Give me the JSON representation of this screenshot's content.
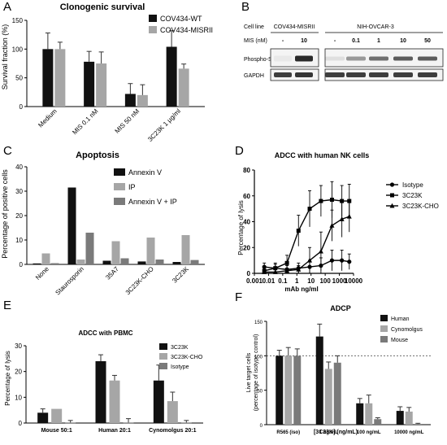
{
  "colors": {
    "black": "#111111",
    "light_gray": "#a6a6a6",
    "dark_gray": "#7a7a7a",
    "lighter_gray": "#c4c4c4",
    "blot_band": "#2a2a2a"
  },
  "chart_data": [
    {
      "panel": "A",
      "type": "bar",
      "title": "Clonogenic survival",
      "xlabel": "",
      "ylabel": "Survival fraction (%)",
      "ylim": [
        0,
        150
      ],
      "yticks": [
        0,
        50,
        100,
        150
      ],
      "categories": [
        "Medium",
        "MIS 0.1 nM",
        "MIS 50 nM",
        "3C23K 1 µg/ml"
      ],
      "series": [
        {
          "name": "COV434-WT",
          "color": "#111111",
          "values": [
            100,
            78,
            22,
            104
          ],
          "errors": [
            28,
            18,
            18,
            28
          ]
        },
        {
          "name": "COV434-MISRII",
          "color": "#a6a6a6",
          "values": [
            100,
            75,
            20,
            66
          ],
          "errors": [
            12,
            20,
            18,
            8
          ]
        }
      ],
      "legend_position": "top-right",
      "grid": false
    },
    {
      "panel": "B",
      "type": "blot",
      "header_label": "Cell line",
      "cell_lines": [
        "COV434-MISRII",
        "NIH-OVCAR-3"
      ],
      "mis_label": "MIS (nM)",
      "doses_left": [
        "-",
        "10"
      ],
      "doses_right": [
        "-",
        "0.1",
        "1",
        "10",
        "50"
      ],
      "rows": [
        "Phospho-Smad1/5",
        "GAPDH"
      ],
      "phospho_intensity_left": [
        0.05,
        1.0
      ],
      "phospho_intensity_right": [
        0.1,
        0.45,
        0.65,
        0.75,
        0.75
      ],
      "gapdh_intensity_left": [
        0.9,
        0.95
      ],
      "gapdh_intensity_right": [
        0.9,
        0.9,
        0.9,
        0.9,
        0.9
      ]
    },
    {
      "panel": "C",
      "type": "bar",
      "title": "Apoptosis",
      "xlabel": "",
      "ylabel": "Percentage of positive cells",
      "ylim": [
        0,
        40
      ],
      "yticks": [
        0,
        10,
        20,
        30,
        40
      ],
      "categories": [
        "None",
        "Staurosporin",
        "35A7",
        "3C23K-CHO",
        "3C23K"
      ],
      "series": [
        {
          "name": "Annexin V",
          "color": "#111111",
          "values": [
            0.4,
            31.5,
            1.5,
            1.2,
            1.0
          ]
        },
        {
          "name": "IP",
          "color": "#a6a6a6",
          "values": [
            4.5,
            2.0,
            9.5,
            11.0,
            12.0
          ]
        },
        {
          "name": "Annexin V + IP",
          "color": "#7a7a7a",
          "values": [
            0.5,
            13.0,
            2.5,
            2.0,
            1.8
          ]
        }
      ],
      "legend_position": "top-right",
      "grid": false
    },
    {
      "panel": "D",
      "type": "line",
      "title": "ADCC with human NK cells",
      "xlabel": "mAb ng/ml",
      "ylabel": "Percentage of lysis",
      "xscale": "log",
      "xlim": [
        0.001,
        10000
      ],
      "xticks": [
        "0.001",
        "0.01",
        "0.1",
        "1",
        "10",
        "100",
        "1000",
        "10000"
      ],
      "ylim": [
        0,
        80
      ],
      "yticks": [
        0,
        20,
        40,
        60,
        80
      ],
      "series": [
        {
          "name": "Isotype",
          "marker": "circle",
          "x": [
            0.005,
            0.03,
            0.2,
            1.3,
            8,
            50,
            300,
            1500,
            5000
          ],
          "y": [
            5,
            4,
            3,
            4,
            5,
            6,
            10,
            10,
            9
          ],
          "errors": [
            3,
            3,
            3,
            4,
            5,
            6,
            8,
            8,
            6
          ]
        },
        {
          "name": "3C23K",
          "marker": "square",
          "x": [
            0.005,
            0.03,
            0.2,
            1.3,
            8,
            50,
            300,
            1500,
            5000
          ],
          "y": [
            2,
            4,
            8,
            33,
            50,
            56,
            57,
            56,
            56
          ],
          "errors": [
            3,
            4,
            6,
            12,
            14,
            12,
            14,
            12,
            13
          ]
        },
        {
          "name": "3C23K-CHO",
          "marker": "triangle",
          "x": [
            0.005,
            0.03,
            0.2,
            1.3,
            8,
            50,
            300,
            1500,
            5000
          ],
          "y": [
            1,
            1,
            2,
            3,
            10,
            17,
            37,
            42,
            44
          ],
          "errors": [
            2,
            2,
            2,
            3,
            10,
            15,
            12,
            14,
            12
          ]
        }
      ],
      "legend_position": "right",
      "grid": false
    },
    {
      "panel": "E",
      "type": "bar",
      "title": "ADCC with PBMC",
      "xlabel": "",
      "ylabel": "Percentage of lysis",
      "ylim": [
        0,
        30
      ],
      "yticks": [
        0,
        10,
        20,
        30
      ],
      "categories": [
        "Mouse 50:1",
        "Human 20:1",
        "Cynomolgus 20:1"
      ],
      "series": [
        {
          "name": "3C23K",
          "color": "#111111",
          "values": [
            4,
            24,
            16.5
          ],
          "errors": [
            1.5,
            2.5,
            6
          ]
        },
        {
          "name": "3C23K-CHO",
          "color": "#a6a6a6",
          "values": [
            5.5,
            16.5,
            8.5
          ],
          "errors": [
            0,
            2,
            3.5
          ]
        },
        {
          "name": "Isotype",
          "color": "#7a7a7a",
          "values": [
            0.2,
            0.2,
            0.2
          ],
          "errors": [
            0.8,
            1.5,
            0.8
          ]
        }
      ],
      "legend_position": "top-right",
      "grid": false
    },
    {
      "panel": "F",
      "type": "bar",
      "title": "ADCP",
      "xlabel": "[3C23K] (ng/mL)",
      "ylabel_line1": "Live target cells",
      "ylabel_line2": "(percentage of isotype control)",
      "ylim": [
        0,
        150
      ],
      "yticks": [
        0,
        50,
        100,
        150
      ],
      "reference_line": 100,
      "categories": [
        "R565 (iso)",
        "1 ng/mL",
        "100 ng/mL",
        "10000 ng/mL"
      ],
      "series": [
        {
          "name": "Human",
          "color": "#111111",
          "values": [
            100,
            128,
            31,
            20
          ],
          "errors": [
            8,
            18,
            7,
            6
          ]
        },
        {
          "name": "Cynomolgus",
          "color": "#a6a6a6",
          "values": [
            100,
            81,
            31,
            19
          ],
          "errors": [
            12,
            10,
            12,
            6
          ]
        },
        {
          "name": "Mouse",
          "color": "#7a7a7a",
          "values": [
            100,
            90,
            8,
            1
          ],
          "errors": [
            10,
            10,
            2,
            1
          ]
        }
      ],
      "legend_position": "top-right",
      "grid": false
    }
  ],
  "panel_letters": [
    "A",
    "B",
    "C",
    "D",
    "E",
    "F"
  ]
}
